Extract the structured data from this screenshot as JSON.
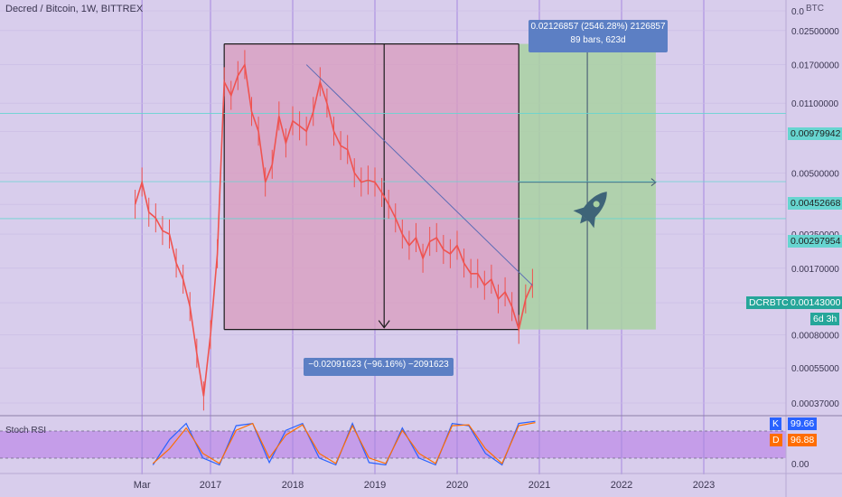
{
  "header": {
    "title": "Decred / Bitcoin, 1W, BITTREX",
    "currency": "BTC"
  },
  "price_axis": {
    "ticks": [
      "0.0",
      "0.02500000",
      "0.01700000",
      "0.01100000",
      "0.00800000",
      "0.00500000",
      "0.00350000",
      "0.00250000",
      "0.00170000",
      "0.001",
      "0.00080000",
      "0.00055000",
      "0.00037000"
    ]
  },
  "time_axis": {
    "ticks": [
      "Mar",
      "2017",
      "2018",
      "2019",
      "2020",
      "2021",
      "2022",
      "2023"
    ]
  },
  "price_tags": [
    {
      "label": "0.00979942",
      "bg": "#67d5d0"
    },
    {
      "label": "0.00452668",
      "bg": "#67d5d0"
    },
    {
      "label": "0.00297954",
      "bg": "#67d5d0"
    }
  ],
  "symbol_tag": {
    "symbol": "DCRBTC",
    "price": "0.00143000",
    "countdown": "6d 3h",
    "bg": "#26a69a"
  },
  "measure_up": {
    "line1": "0.02126857 (2546.28%) 2126857",
    "line2": "89 bars, 623d",
    "bg": "#5c7fc4"
  },
  "measure_down": {
    "line1": "−0.02091623 (−96.16%) −2091623",
    "bg": "#5c7fc4"
  },
  "stoch_rsi": {
    "label": "Stoch RSI",
    "k_label": "K",
    "k_value": "99.66",
    "k_color": "#2962ff",
    "d_label": "D",
    "d_value": "96.88",
    "d_color": "#ff6d00",
    "ticks": [
      "0.00"
    ]
  },
  "colors": {
    "background": "#d8cdec",
    "candle": "#ef5350",
    "short_zone": "#d99bbd",
    "long_zone": "#a9d1a2",
    "trendline": "#5b6bb5",
    "rocket": "#3e6478"
  },
  "chart_data": {
    "type": "candlestick",
    "title": "Decred / Bitcoin, 1W, BITTREX",
    "yscale": "log",
    "ylim": [
      0.00037,
      0.03
    ],
    "xlim": [
      "2016-02",
      "2023-04"
    ],
    "series": [
      {
        "name": "DCRBTC",
        "points": [
          [
            "2016-02",
            0.0035
          ],
          [
            "2016-03",
            0.0045
          ],
          [
            "2016-04",
            0.0032
          ],
          [
            "2016-05",
            0.003
          ],
          [
            "2016-06",
            0.0026
          ],
          [
            "2016-07",
            0.0025
          ],
          [
            "2016-08",
            0.0018
          ],
          [
            "2016-09",
            0.0015
          ],
          [
            "2016-10",
            0.0011
          ],
          [
            "2016-11",
            0.00065
          ],
          [
            "2016-12",
            0.0004
          ],
          [
            "2017-01",
            0.0008
          ],
          [
            "2017-02",
            0.002
          ],
          [
            "2017-03",
            0.014
          ],
          [
            "2017-04",
            0.012
          ],
          [
            "2017-05",
            0.015
          ],
          [
            "2017-06",
            0.017
          ],
          [
            "2017-07",
            0.01
          ],
          [
            "2017-08",
            0.008
          ],
          [
            "2017-09",
            0.0045
          ],
          [
            "2017-10",
            0.0055
          ],
          [
            "2017-11",
            0.0095
          ],
          [
            "2017-12",
            0.007
          ],
          [
            "2018-01",
            0.009
          ],
          [
            "2018-02",
            0.0085
          ],
          [
            "2018-03",
            0.008
          ],
          [
            "2018-04",
            0.01
          ],
          [
            "2018-05",
            0.014
          ],
          [
            "2018-06",
            0.011
          ],
          [
            "2018-07",
            0.008
          ],
          [
            "2018-08",
            0.0068
          ],
          [
            "2018-09",
            0.0065
          ],
          [
            "2018-10",
            0.005
          ],
          [
            "2018-11",
            0.0045
          ],
          [
            "2018-12",
            0.0046
          ],
          [
            "2019-01",
            0.0045
          ],
          [
            "2019-02",
            0.004
          ],
          [
            "2019-03",
            0.0035
          ],
          [
            "2019-04",
            0.003
          ],
          [
            "2019-05",
            0.0025
          ],
          [
            "2019-06",
            0.0022
          ],
          [
            "2019-07",
            0.0024
          ],
          [
            "2019-08",
            0.0019
          ],
          [
            "2019-09",
            0.0023
          ],
          [
            "2019-10",
            0.0024
          ],
          [
            "2019-11",
            0.0021
          ],
          [
            "2019-12",
            0.002
          ],
          [
            "2020-01",
            0.0022
          ],
          [
            "2020-02",
            0.0018
          ],
          [
            "2020-03",
            0.0016
          ],
          [
            "2020-04",
            0.0016
          ],
          [
            "2020-05",
            0.0014
          ],
          [
            "2020-06",
            0.0015
          ],
          [
            "2020-07",
            0.0012
          ],
          [
            "2020-08",
            0.0013
          ],
          [
            "2020-09",
            0.0011
          ],
          [
            "2020-10",
            0.00085
          ],
          [
            "2020-11",
            0.0012
          ],
          [
            "2020-12",
            0.00143
          ]
        ]
      }
    ],
    "annotations": {
      "short_position": {
        "x_start": "2017-03",
        "x_end": "2020-10",
        "entry": 0.0215,
        "target": 0.00085
      },
      "long_position": {
        "x_start": "2020-10",
        "x_end": "2022-06",
        "target": 0.0215
      },
      "trendline": {
        "from": [
          "2018-03",
          0.017
        ],
        "to": [
          "2020-12",
          0.0014
        ]
      },
      "horizontal_levels": [
        0.00979942,
        0.00452668,
        0.00297954
      ]
    },
    "stoch_rsi": {
      "type": "line",
      "series": [
        {
          "name": "K",
          "values": [
            5,
            60,
            95,
            20,
            5,
            90,
            95,
            10,
            80,
            95,
            20,
            5,
            95,
            10,
            5,
            85,
            20,
            5,
            95,
            90,
            30,
            5,
            95,
            99.66
          ]
        },
        {
          "name": "D",
          "values": [
            8,
            40,
            85,
            30,
            8,
            80,
            95,
            20,
            70,
            92,
            30,
            8,
            90,
            20,
            8,
            80,
            30,
            8,
            90,
            92,
            40,
            8,
            90,
            96.88
          ]
        }
      ],
      "ylim": [
        0,
        100
      ]
    }
  }
}
